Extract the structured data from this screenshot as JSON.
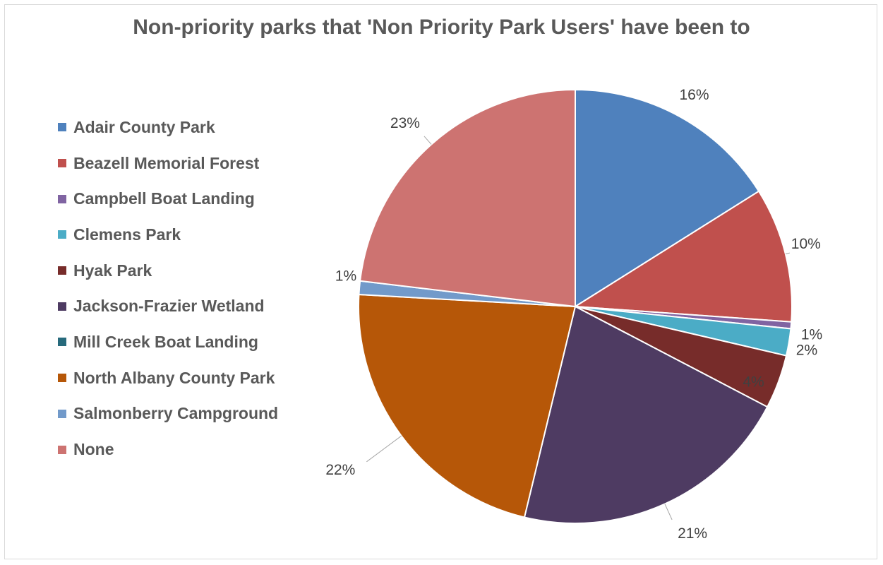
{
  "chart_data": {
    "type": "pie",
    "title": "Non-priority parks that 'Non Priority Park Users' have been to",
    "categories": [
      "Adair County Park",
      "Beazell Memorial Forest",
      "Campbell Boat Landing",
      "Clemens Park",
      "Hyak Park",
      "Jackson-Frazier Wetland",
      "Mill Creek Boat Landing",
      "North Albany County Park",
      "Salmonberry Campground",
      "None"
    ],
    "values": [
      16,
      10,
      0.5,
      2,
      4,
      21,
      0,
      22,
      1,
      23
    ],
    "data_labels": [
      "16%",
      "10%",
      "1%",
      "2%",
      "4%",
      "21%",
      "",
      "22%",
      "1%",
      "23%"
    ],
    "colors": [
      "#4f81bd",
      "#c0504d",
      "#8064a2",
      "#4bacc6",
      "#772c2a",
      "#4e3b62",
      "#276a7c",
      "#b65708",
      "#729aca",
      "#cd7371"
    ],
    "legend_position": "left"
  }
}
